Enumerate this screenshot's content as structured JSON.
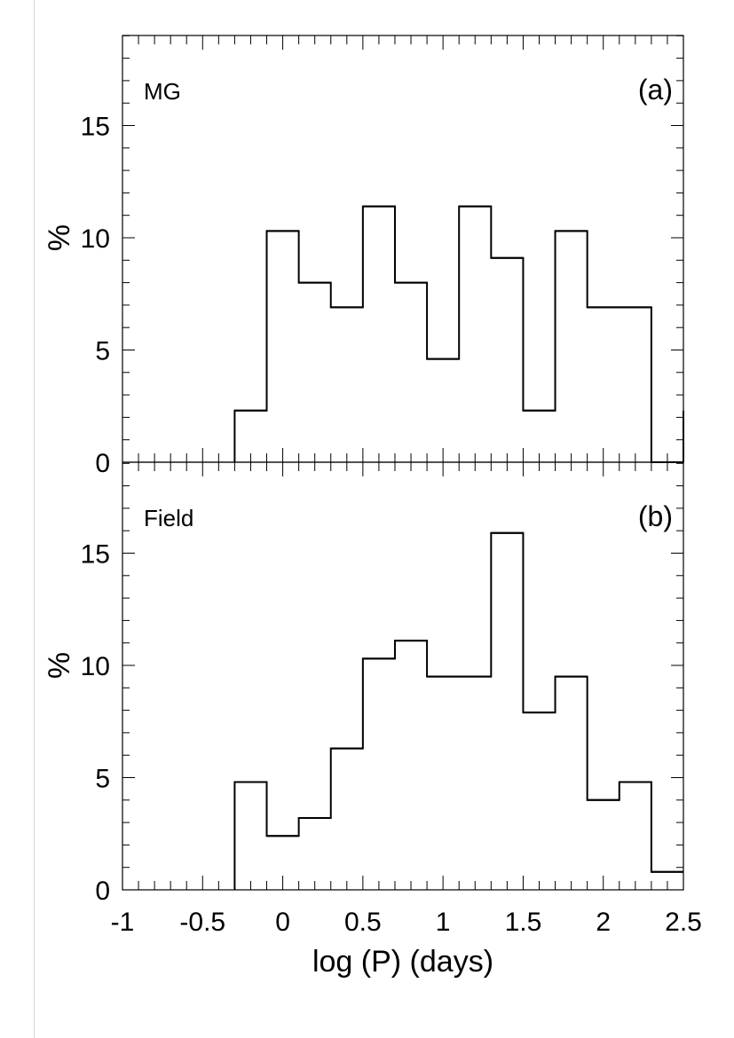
{
  "chart_data": [
    {
      "type": "bar",
      "subtype": "histogram",
      "panel_tag": "(a)",
      "label": "MG",
      "ylabel": "%",
      "xlim": [
        -1,
        2.5
      ],
      "ylim": [
        0,
        19
      ],
      "bin_edges": [
        -0.3,
        -0.1,
        0.1,
        0.3,
        0.5,
        0.7,
        0.9,
        1.1,
        1.3,
        1.5,
        1.7,
        1.9,
        2.1,
        2.3,
        2.5
      ],
      "values": [
        2.3,
        10.3,
        8.0,
        6.9,
        11.4,
        8.0,
        4.6,
        11.4,
        9.1,
        2.3,
        10.3,
        6.9,
        6.9,
        0
      ],
      "yticks": [
        0,
        5,
        10,
        15
      ],
      "ytick_labels": [
        "0",
        "5",
        "10",
        "15"
      ]
    },
    {
      "type": "bar",
      "subtype": "histogram",
      "panel_tag": "(b)",
      "label": "Field",
      "ylabel": "%",
      "xlabel": "log (P) (days)",
      "xlim": [
        -1,
        2.5
      ],
      "ylim": [
        0,
        19
      ],
      "bin_edges": [
        -0.3,
        -0.1,
        0.1,
        0.3,
        0.5,
        0.7,
        0.9,
        1.1,
        1.3,
        1.5,
        1.7,
        1.9,
        2.1,
        2.3,
        2.5
      ],
      "values": [
        4.8,
        2.4,
        3.2,
        6.3,
        10.3,
        11.1,
        9.5,
        9.5,
        15.9,
        7.9,
        9.5,
        4.0,
        4.8,
        0.8
      ],
      "yticks": [
        0,
        5,
        10,
        15
      ],
      "ytick_labels": [
        "0",
        "5",
        "10",
        "15"
      ],
      "xticks": [
        -1,
        -0.5,
        0,
        0.5,
        1,
        1.5,
        2,
        2.5
      ],
      "xtick_labels": [
        "-1",
        "-0.5",
        "0",
        "0.5",
        "1",
        "1.5",
        "2",
        "2.5"
      ]
    }
  ]
}
